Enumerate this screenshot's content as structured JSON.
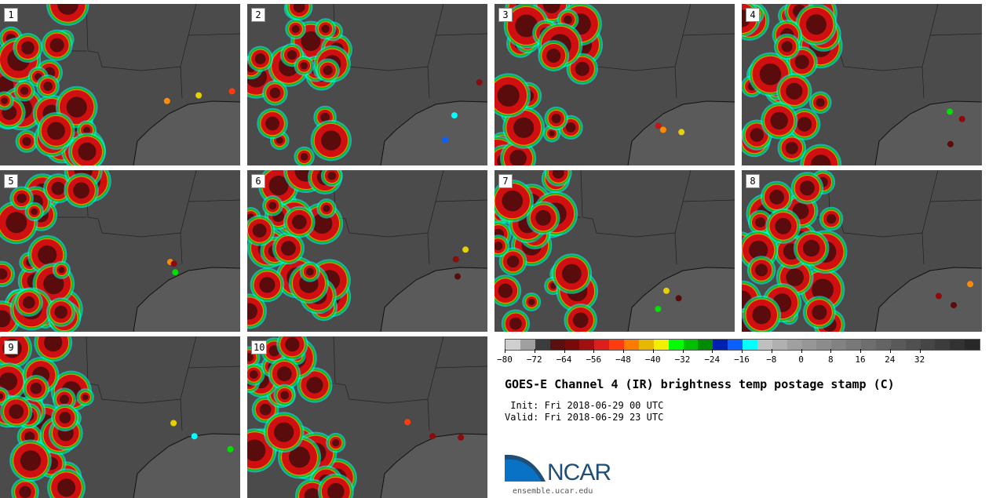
{
  "panels": [
    {
      "label": "1"
    },
    {
      "label": "2"
    },
    {
      "label": "3"
    },
    {
      "label": "4"
    },
    {
      "label": "5"
    },
    {
      "label": "6"
    },
    {
      "label": "7"
    },
    {
      "label": "8"
    },
    {
      "label": "9"
    },
    {
      "label": "10"
    }
  ],
  "colorbar": {
    "colors": [
      "#cfcfcf",
      "#a0a0a0",
      "#3c3c3c",
      "#5a1010",
      "#7a0a0a",
      "#a01010",
      "#dd1e1e",
      "#ff3b10",
      "#ff7a00",
      "#e6b800",
      "#f0f000",
      "#00ff00",
      "#00c000",
      "#008a00",
      "#0020b0",
      "#0a60ff",
      "#00ffff",
      "#bfbfbf",
      "#b0b0b0",
      "#a0a0a0",
      "#969696",
      "#8c8c8c",
      "#828282",
      "#787878",
      "#6e6e6e",
      "#646464",
      "#5a5a5a",
      "#505050",
      "#464646",
      "#3c3c3c",
      "#323232",
      "#282828"
    ],
    "ticks": [
      "−80",
      "−72",
      "−64",
      "−56",
      "−48",
      "−40",
      "−32",
      "−24",
      "−16",
      "−8",
      "0",
      "8",
      "16",
      "24",
      "32"
    ]
  },
  "title": "GOES-E Channel 4 (IR) brightness temp postage stamp (C)",
  "init": " Init: Fri 2018-06-29 00 UTC",
  "valid": "Valid: Fri 2018-06-29 23 UTC",
  "logo": {
    "text": "NCAR",
    "url": "ensemble.ucar.edu"
  }
}
